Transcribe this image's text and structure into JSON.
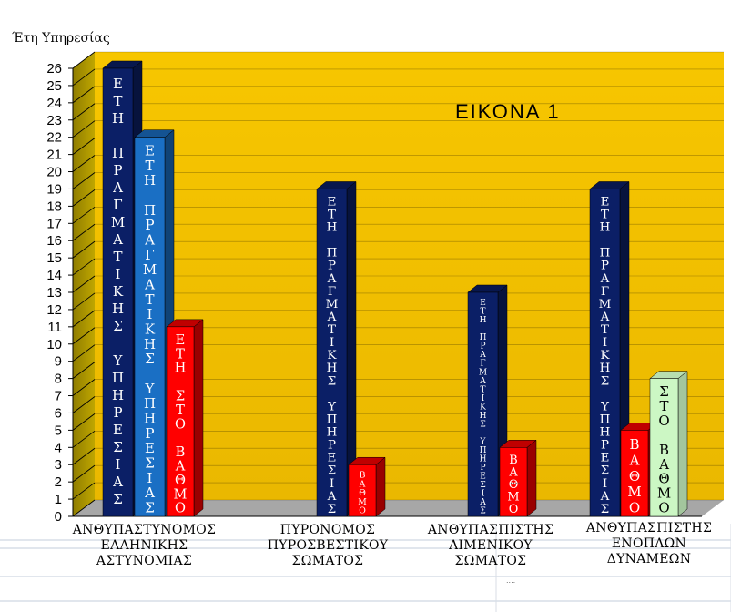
{
  "chart_data": {
    "type": "bar",
    "title": "ΕΙΚΟΝΑ   1",
    "ylabel": "Έτη Υπηρεσίας",
    "ylim": [
      0,
      26
    ],
    "yticks": [
      0,
      1,
      2,
      3,
      4,
      5,
      6,
      7,
      8,
      9,
      10,
      11,
      12,
      13,
      14,
      15,
      16,
      17,
      18,
      19,
      20,
      21,
      22,
      23,
      24,
      25,
      26
    ],
    "grid": true,
    "categories": [
      [
        "ΑΝΘΥΠΑΣΤΥΝΟΜΟΣ",
        "ΕΛΛΗΝΙΚΗΣ",
        "ΑΣΤΥΝΟΜΙΑΣ"
      ],
      [
        "ΠΥΡΟΝΟΜΟΣ",
        "ΠΥΡΟΣΒΕΣΤΙΚΟΥ",
        "ΣΩΜΑΤΟΣ"
      ],
      [
        "ΑΝΘΥΠΑΣΠΙΣΤΗΣ",
        "ΛΙΜΕΝΙΚΟΥ",
        "ΣΩΜΑΤΟΣ"
      ],
      [
        "ΑΝΘΥΠΑΣΠΙΣΤΗΣ",
        "ΕΝΟΠΛΩΝ",
        "ΔΥΝΑΜΕΩΝ"
      ]
    ],
    "bars": [
      {
        "category": 0,
        "value": 26,
        "label": "ΕΤΗ ΠΡΑΓΜΑΤΙΚΗΣ ΥΠΗΡΕΣΙΑΣ",
        "color": "#0b1f66"
      },
      {
        "category": 0,
        "value": 22,
        "label": "ΕΤΗ ΠΡΑΓΜΑΤΙΚΗΣ ΥΠΗΡΕΣΙΑΣ",
        "color": "#1a6fc4"
      },
      {
        "category": 0,
        "value": 11,
        "label": "ΕΤΗ ΣΤΟ ΒΑΘΜΟ",
        "color": "#ff0000"
      },
      {
        "category": 1,
        "value": 19,
        "label": "ΕΤΗ ΠΡΑΓΜΑΤΙΚΗΣ ΥΠΗΡΕΣΙΑΣ",
        "color": "#0b1f66"
      },
      {
        "category": 1,
        "value": 3,
        "label": "ΒΑΘΜΟ",
        "color": "#ff0000"
      },
      {
        "category": 2,
        "value": 13,
        "label": "ΕΤΗ ΠΡΑΓΜΑΤΙΚΗΣ ΥΠΗΡΕΣΙΑΣ",
        "color": "#0b1f66"
      },
      {
        "category": 2,
        "value": 4,
        "label": "ΒΑΘΜΟ",
        "color": "#ff0000"
      },
      {
        "category": 3,
        "value": 19,
        "label": "ΕΤΗ ΠΡΑΓΜΑΤΙΚΗΣ ΥΠΗΡΕΣΙΑΣ",
        "color": "#0b1f66"
      },
      {
        "category": 3,
        "value": 5,
        "label": "ΒΑΘΜΟ",
        "color": "#ff0000"
      },
      {
        "category": 3,
        "value": 8,
        "label": "ΣΤΟ ΒΑΘΜΟ",
        "color": "#ccf7c4"
      }
    ],
    "annotations": [
      "ΕΙΚΟΝΑ   1"
    ],
    "colors": {
      "wall_top": "#f5c800",
      "wall_bottom": "#e8b400",
      "side_wall": "#a89200",
      "floor": "#a8a8a8"
    }
  },
  "footer_marks": [
    "....",
    "...."
  ]
}
